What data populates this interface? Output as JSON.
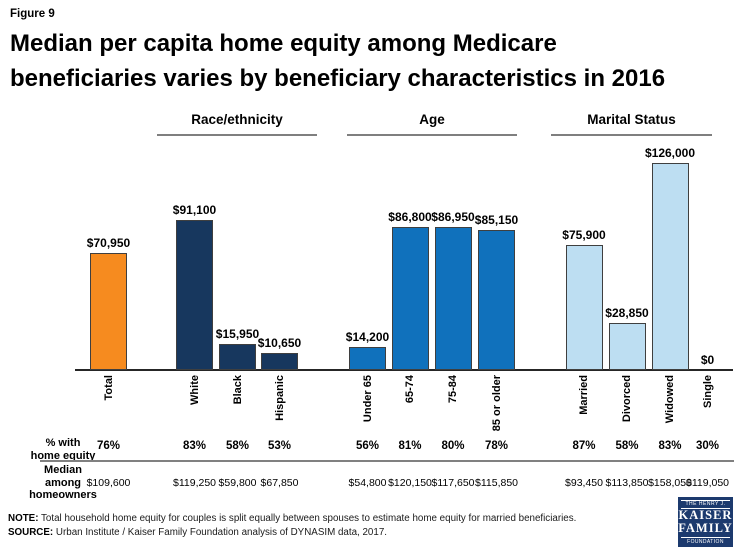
{
  "figure_label": "Figure 9",
  "title_line1": "Median per capita home equity among Medicare",
  "title_line2": "beneficiaries varies by beneficiary characteristics in 2016",
  "colors": {
    "total_bar": "#F68B1F",
    "race_bar": "#17375E",
    "age_bar": "#1071BC",
    "marital_bar": "#BDDEF2",
    "bar_border": "#3F3F3F",
    "logo_navy": "#1C3A6E"
  },
  "chart_data": {
    "type": "bar",
    "title": "Median per capita home equity among Medicare beneficiaries varies by beneficiary characteristics in 2016",
    "ylim": [
      0,
      126000
    ],
    "grid": false,
    "legend": false,
    "groups": [
      {
        "name": "",
        "color_key": "total_bar",
        "bars": [
          {
            "label": "Total",
            "value": 70950,
            "value_label": "$70,950",
            "pct_home_equity": "76%",
            "median_homeowners": "$109,600"
          }
        ]
      },
      {
        "name": "Race/ethnicity",
        "color_key": "race_bar",
        "bars": [
          {
            "label": "White",
            "value": 91100,
            "value_label": "$91,100",
            "pct_home_equity": "83%",
            "median_homeowners": "$119,250"
          },
          {
            "label": "Black",
            "value": 15950,
            "value_label": "$15,950",
            "pct_home_equity": "58%",
            "median_homeowners": "$59,800"
          },
          {
            "label": "Hispanic",
            "value": 10650,
            "value_label": "$10,650",
            "pct_home_equity": "53%",
            "median_homeowners": "$67,850"
          }
        ]
      },
      {
        "name": "Age",
        "color_key": "age_bar",
        "bars": [
          {
            "label": "Under 65",
            "value": 14200,
            "value_label": "$14,200",
            "pct_home_equity": "56%",
            "median_homeowners": "$54,800"
          },
          {
            "label": "65-74",
            "value": 86800,
            "value_label": "$86,800",
            "pct_home_equity": "81%",
            "median_homeowners": "$120,150"
          },
          {
            "label": "75-84",
            "value": 86950,
            "value_label": "$86,950",
            "pct_home_equity": "80%",
            "median_homeowners": "$117,650"
          },
          {
            "label": "85 or older",
            "value": 85150,
            "value_label": "$85,150",
            "pct_home_equity": "78%",
            "median_homeowners": "$115,850"
          }
        ]
      },
      {
        "name": "Marital Status",
        "color_key": "marital_bar",
        "bars": [
          {
            "label": "Married",
            "value": 75900,
            "value_label": "$75,900",
            "pct_home_equity": "87%",
            "median_homeowners": "$93,450"
          },
          {
            "label": "Divorced",
            "value": 28850,
            "value_label": "$28,850",
            "pct_home_equity": "58%",
            "median_homeowners": "$113,850"
          },
          {
            "label": "Widowed",
            "value": 126000,
            "value_label": "$126,000",
            "pct_home_equity": "83%",
            "median_homeowners": "$158,050"
          },
          {
            "label": "Single",
            "value": 0,
            "value_label": "$0",
            "pct_home_equity": "30%",
            "median_homeowners": "$119,050"
          }
        ]
      }
    ]
  },
  "table": {
    "row1_label": "% with\nhome equity",
    "row2_label": "Median\namong\nhomeowners"
  },
  "footer": {
    "note_label": "NOTE:",
    "note_text": "Total household home equity for couples is split equally between spouses to estimate home equity for married beneficiaries.",
    "source_label": "SOURCE:",
    "source_text": "Urban Institute / Kaiser Family Foundation analysis of DYNASIM data, 2017."
  },
  "logo": {
    "line1": "THE HENRY J.",
    "line2": "KAISER",
    "line3": "FAMILY",
    "line4": "FOUNDATION"
  }
}
